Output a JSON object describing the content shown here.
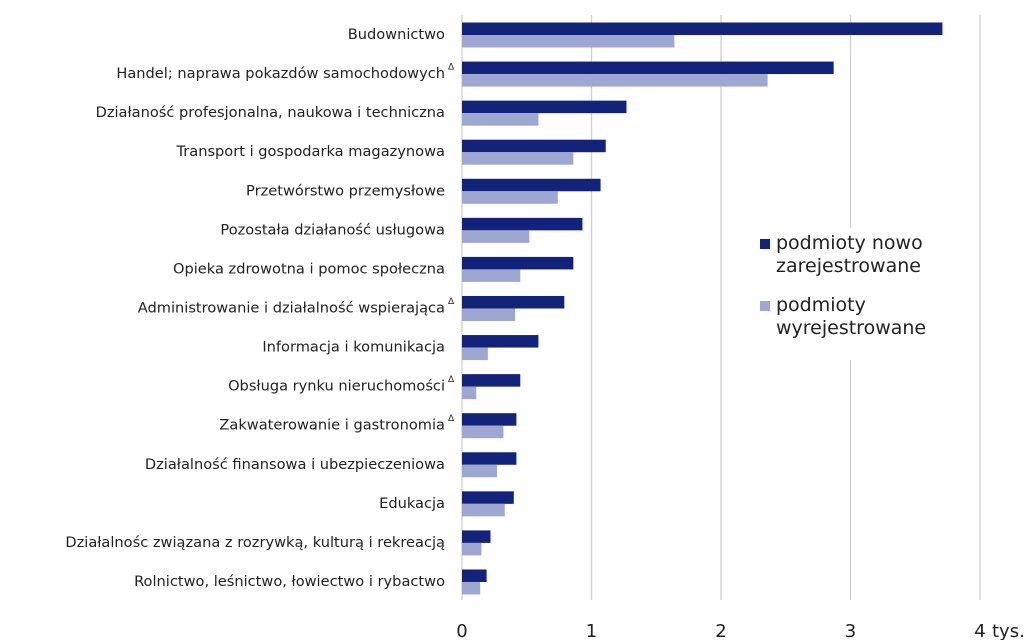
{
  "chart_data": {
    "type": "bar",
    "orientation": "horizontal",
    "categories": [
      "Budownictwo",
      "Handel; naprawa pokazdów samochodowych",
      "Działaność profesjonalna, naukowa i techniczna",
      "Transport i gospodarka magazynowa",
      "Przetwórstwo przemysłowe",
      "Pozostała działaność usługowa",
      "Opieka zdrowotna i pomoc społeczna",
      "Administrowanie i działalność wspierająca",
      "Informacja i komunikacja",
      "Obsługa rynku nieruchomości",
      "Zakwaterowanie i gastronomia",
      "Działalność finansowa i ubezpieczeniowa",
      "Edukacja",
      "Działalnośc związana z rozrywką, kulturą i rekreacją",
      "Rolnictwo, leśnictwo, łowiectwo i rybactwo"
    ],
    "category_notes": [
      null,
      "Δ",
      null,
      null,
      null,
      null,
      null,
      "Δ",
      null,
      "Δ",
      "Δ",
      null,
      null,
      null,
      null
    ],
    "series": [
      {
        "name": "podmioty nowo zarejestrowane",
        "color": "#14237a",
        "values": [
          3.71,
          2.87,
          1.27,
          1.11,
          1.07,
          0.93,
          0.86,
          0.79,
          0.59,
          0.45,
          0.42,
          0.42,
          0.4,
          0.22,
          0.19
        ]
      },
      {
        "name": "podmioty wyrejestrowane",
        "color": "#9ea6d2",
        "values": [
          1.64,
          2.36,
          0.59,
          0.86,
          0.74,
          0.52,
          0.45,
          0.41,
          0.2,
          0.11,
          0.32,
          0.27,
          0.33,
          0.15,
          0.14
        ]
      }
    ],
    "xlim": [
      0,
      4
    ],
    "xticks": [
      0,
      1,
      2,
      3,
      4
    ],
    "x_unit": "tys.",
    "grid": true
  }
}
